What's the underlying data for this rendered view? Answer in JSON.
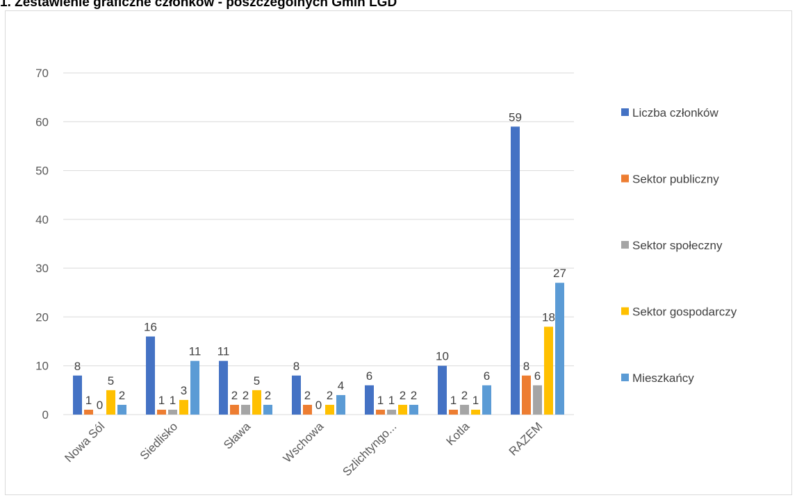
{
  "page": {
    "title": "1. Zestawienie graficzne członków - poszczególnych Gmin LGD"
  },
  "chart_data": {
    "type": "bar",
    "categories": [
      "Nowa Sól",
      "Siedlisko",
      "Sława",
      "Wschowa",
      "Szlichtyngo...",
      "Kotla",
      "RAZEM"
    ],
    "series": [
      {
        "name": "Liczba członków",
        "color": "#4472c4",
        "values": [
          8,
          16,
          11,
          8,
          6,
          10,
          59
        ]
      },
      {
        "name": "Sektor publiczny",
        "color": "#ed7d31",
        "values": [
          1,
          1,
          2,
          2,
          1,
          1,
          8
        ]
      },
      {
        "name": "Sektor społeczny",
        "color": "#a5a5a5",
        "values": [
          0,
          1,
          2,
          0,
          1,
          2,
          6
        ]
      },
      {
        "name": "Sektor gospodarczy",
        "color": "#ffc000",
        "values": [
          5,
          3,
          5,
          2,
          2,
          1,
          18
        ]
      },
      {
        "name": "Mieszkańcy",
        "color": "#5b9bd5",
        "values": [
          2,
          11,
          2,
          4,
          2,
          6,
          27
        ]
      }
    ],
    "data_labels": [
      [
        "8",
        "16",
        "11",
        "8",
        "6",
        "10",
        "59"
      ],
      [
        "1",
        "1",
        "2",
        "2",
        "1",
        "1",
        "8"
      ],
      [
        "0",
        "1",
        "2",
        "0",
        "1",
        "2",
        "6"
      ],
      [
        "5",
        "3",
        "5",
        "2",
        "2",
        "1",
        "18"
      ],
      [
        "2",
        "11",
        "2",
        "4",
        "2",
        "6",
        "27"
      ]
    ],
    "ylim": [
      0,
      70
    ],
    "yticks": [
      "0",
      "10",
      "20",
      "30",
      "40",
      "50",
      "60",
      "70"
    ],
    "grid": true,
    "legend_position": "right",
    "xlabel": "",
    "ylabel": ""
  }
}
